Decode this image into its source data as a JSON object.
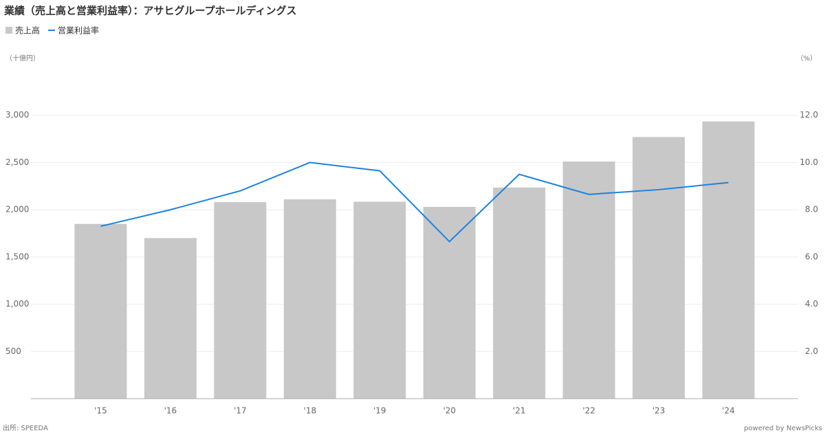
{
  "chart_data": {
    "type": "bar_line",
    "title": "業績（売上高と営業利益率）：アサヒグループホールディングス",
    "y_label": "（十億円）",
    "y2_label": "（%）",
    "source": "出所: SPEEDA",
    "credit": "powered by NewsPicks",
    "categories": [
      "'15",
      "'16",
      "'17",
      "'18",
      "'19",
      "'20",
      "'21",
      "'22",
      "'23",
      "'24"
    ],
    "series": [
      {
        "name": "売上高",
        "type": "bar",
        "color": "#c8c8c8",
        "values": [
          1850,
          1700,
          2080,
          2110,
          2085,
          2030,
          2235,
          2510,
          2770,
          2935
        ]
      },
      {
        "name": "営業利益率",
        "type": "line",
        "axis": "y2",
        "color": "#1a82e2",
        "values": [
          7.3,
          8.0,
          8.8,
          10.0,
          9.65,
          6.65,
          9.5,
          8.65,
          8.85,
          9.15
        ]
      }
    ],
    "ylim": [
      0,
      3500
    ],
    "yticks": [
      {
        "value": 500,
        "label": "500"
      },
      {
        "value": 1000,
        "label": "1,000"
      },
      {
        "value": 1500,
        "label": "1,500"
      },
      {
        "value": 2000,
        "label": "2,000"
      },
      {
        "value": 2500,
        "label": "2,500"
      },
      {
        "value": 3000,
        "label": "3,000"
      }
    ],
    "y2lim": [
      0,
      14
    ],
    "y2ticks": [
      {
        "value": 2,
        "label": "2.0"
      },
      {
        "value": 4,
        "label": "4.0"
      },
      {
        "value": 6,
        "label": "6.0"
      },
      {
        "value": 8,
        "label": "8.0"
      },
      {
        "value": 10,
        "label": "10.0"
      },
      {
        "value": 12,
        "label": "12.0"
      }
    ],
    "grid": true
  }
}
